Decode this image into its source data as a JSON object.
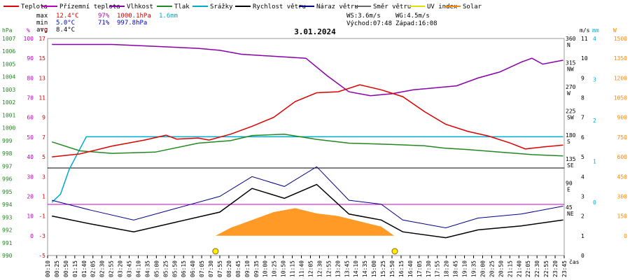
{
  "chart_data": {
    "type": "line",
    "title": "3.01.2024",
    "legend": [
      {
        "name": "Teplota",
        "color": "#dd0000"
      },
      {
        "name": "Přízemní teplota",
        "color": "#bb00bb"
      },
      {
        "name": "Vlhkost",
        "color": "#8800aa"
      },
      {
        "name": "Tlak",
        "color": "#228822"
      },
      {
        "name": "Srážky",
        "color": "#00aacc"
      },
      {
        "name": "Rychlost větru",
        "color": "#000000"
      },
      {
        "name": "Náraz větru",
        "color": "#000088"
      },
      {
        "name": "Směr větru",
        "color": "#666666"
      },
      {
        "name": "UV index",
        "color": "#e0e000"
      },
      {
        "name": "Solar",
        "color": "#ff8800"
      }
    ],
    "stats": {
      "max": {
        "label": "max",
        "temp": "12.4°C",
        "hum": "97%",
        "press": "1000.1hPa",
        "rain": "1.6mm"
      },
      "min": {
        "label": "min",
        "temp": "5.0°C",
        "hum": "71%",
        "press": "997.8hPa"
      },
      "avg": {
        "label": "avg",
        "temp": "8.4°C"
      }
    },
    "wind_info": {
      "ws": "WS:3.6m/s",
      "wg": "WG:4.5m/s",
      "sunrise": "Východ:07:48",
      "sunset": "Západ:16:08"
    },
    "axes": {
      "left_units": {
        "hpa": "hPa",
        "pct": "%",
        "degc": "°C"
      },
      "right_units": {
        "ms": "m/s",
        "mm": "mm",
        "w": "W"
      },
      "x_unit": "čas",
      "hpa_ticks": [
        "1007",
        "1006",
        "1005",
        "1004",
        "1003",
        "1002",
        "1001",
        "1000",
        "999",
        "998",
        "997",
        "996",
        "995",
        "994",
        "993",
        "992",
        "991",
        "990"
      ],
      "pct_ticks": [
        "100",
        "90",
        "80",
        "70",
        "60",
        "50",
        "40",
        "30",
        "20",
        "10",
        "0"
      ],
      "temp_ticks_top": [
        "17",
        "15",
        "13",
        "11",
        "9",
        "7",
        "5"
      ],
      "temp_ticks_bottom": [
        "3",
        "1",
        "-1",
        "-3",
        "-5"
      ],
      "dir_ticks": [
        {
          "deg": "360",
          "dir": "N"
        },
        {
          "deg": "315",
          "dir": "NW"
        },
        {
          "deg": "270",
          "dir": "W"
        },
        {
          "deg": "225",
          "dir": "SW"
        },
        {
          "deg": "180",
          "dir": "S"
        },
        {
          "deg": "135",
          "dir": "SE"
        },
        {
          "deg": "90",
          "dir": "E"
        },
        {
          "deg": "45",
          "dir": "NE"
        }
      ],
      "ms_ticks": [
        "11",
        "10",
        "9",
        "8",
        "7",
        "6",
        "5",
        "4",
        "3",
        "2",
        "1",
        "0"
      ],
      "mm_ticks": [
        "4",
        "3",
        "2",
        "1",
        "0"
      ],
      "w_ticks": [
        "1500",
        "1350",
        "1200",
        "1050",
        "900",
        "750",
        "600",
        "450",
        "300",
        "150",
        "0"
      ],
      "time_ticks": [
        "00:10",
        "00:25",
        "00:50",
        "01:15",
        "01:40",
        "02:05",
        "02:30",
        "02:55",
        "03:20",
        "03:45",
        "04:10",
        "04:35",
        "05:00",
        "05:25",
        "05:50",
        "06:15",
        "06:40",
        "07:05",
        "07:30",
        "07:55",
        "08:20",
        "08:45",
        "09:10",
        "09:35",
        "10:00",
        "10:25",
        "10:50",
        "11:15",
        "11:40",
        "12:05",
        "12:30",
        "12:55",
        "13:20",
        "13:45",
        "14:10",
        "14:35",
        "15:00",
        "15:25",
        "15:50",
        "16:15",
        "16:40",
        "17:05",
        "17:30",
        "17:55",
        "18:20",
        "18:45",
        "19:10",
        "19:35",
        "20:00",
        "20:25",
        "20:50",
        "21:15",
        "21:40",
        "22:05",
        "22:30",
        "22:55",
        "23:20",
        "23:45"
      ]
    },
    "series": [
      {
        "name": "Teplota",
        "unit": "°C",
        "points": [
          [
            0.2,
            5.0
          ],
          [
            1.5,
            5.3
          ],
          [
            3.0,
            6.1
          ],
          [
            4.5,
            6.7
          ],
          [
            5.5,
            7.2
          ],
          [
            6.0,
            6.8
          ],
          [
            7.0,
            6.9
          ],
          [
            7.5,
            6.7
          ],
          [
            8.5,
            7.3
          ],
          [
            9.5,
            8.1
          ],
          [
            10.5,
            9.0
          ],
          [
            11.5,
            10.6
          ],
          [
            12.5,
            11.5
          ],
          [
            13.5,
            11.6
          ],
          [
            14.5,
            12.3
          ],
          [
            15.5,
            11.8
          ],
          [
            16.5,
            11.1
          ],
          [
            17.5,
            9.6
          ],
          [
            18.5,
            8.3
          ],
          [
            19.5,
            7.6
          ],
          [
            20.5,
            7.1
          ],
          [
            21.5,
            6.4
          ],
          [
            22.2,
            5.8
          ],
          [
            23.0,
            6.0
          ],
          [
            23.95,
            6.2
          ]
        ]
      },
      {
        "name": "Vlhkost",
        "unit": "%",
        "points": [
          [
            0.2,
            97
          ],
          [
            1.5,
            97
          ],
          [
            3.0,
            97
          ],
          [
            5.0,
            96
          ],
          [
            7.0,
            95
          ],
          [
            8.0,
            94
          ],
          [
            9.0,
            92
          ],
          [
            10.5,
            91
          ],
          [
            12.0,
            90
          ],
          [
            13.0,
            81
          ],
          [
            14.0,
            73
          ],
          [
            15.0,
            71
          ],
          [
            16.0,
            72
          ],
          [
            17.0,
            74
          ],
          [
            18.0,
            75
          ],
          [
            19.0,
            76
          ],
          [
            20.0,
            80
          ],
          [
            21.0,
            83
          ],
          [
            22.0,
            88
          ],
          [
            22.5,
            90
          ],
          [
            23.0,
            87
          ],
          [
            23.95,
            89
          ]
        ]
      },
      {
        "name": "Tlak",
        "unit": "hPa",
        "points": [
          [
            0.2,
            998.9
          ],
          [
            1.5,
            998.2
          ],
          [
            3.0,
            998.0
          ],
          [
            5.0,
            998.1
          ],
          [
            7.0,
            998.8
          ],
          [
            8.5,
            999.0
          ],
          [
            9.5,
            999.4
          ],
          [
            11.0,
            999.5
          ],
          [
            12.5,
            999.1
          ],
          [
            14.0,
            998.8
          ],
          [
            16.0,
            998.7
          ],
          [
            17.5,
            998.6
          ],
          [
            18.5,
            998.4
          ],
          [
            19.5,
            998.3
          ],
          [
            21.0,
            998.1
          ],
          [
            22.5,
            997.9
          ],
          [
            23.95,
            997.8
          ]
        ]
      },
      {
        "name": "Srážky",
        "unit": "mm",
        "points": [
          [
            0.2,
            0
          ],
          [
            0.6,
            0.2
          ],
          [
            1.0,
            0.8
          ],
          [
            1.4,
            1.2
          ],
          [
            1.8,
            1.6
          ],
          [
            23.95,
            1.6
          ]
        ]
      },
      {
        "name": "Rychlost větru",
        "unit": "m/s",
        "points": [
          [
            0.2,
            2.0
          ],
          [
            2.0,
            1.6
          ],
          [
            4.0,
            1.2
          ],
          [
            6.0,
            1.7
          ],
          [
            8.0,
            2.2
          ],
          [
            9.5,
            3.4
          ],
          [
            11.0,
            2.9
          ],
          [
            12.5,
            3.6
          ],
          [
            14.0,
            2.1
          ],
          [
            15.5,
            1.8
          ],
          [
            16.5,
            1.2
          ],
          [
            18.5,
            0.9
          ],
          [
            20.0,
            1.3
          ],
          [
            22.0,
            1.5
          ],
          [
            23.95,
            1.8
          ]
        ]
      },
      {
        "name": "Náraz větru",
        "unit": "m/s",
        "points": [
          [
            0.2,
            2.8
          ],
          [
            2.0,
            2.3
          ],
          [
            4.0,
            1.8
          ],
          [
            6.0,
            2.4
          ],
          [
            8.0,
            3.0
          ],
          [
            9.5,
            4.0
          ],
          [
            11.0,
            3.5
          ],
          [
            12.5,
            4.5
          ],
          [
            14.0,
            2.8
          ],
          [
            15.5,
            2.6
          ],
          [
            16.5,
            1.8
          ],
          [
            18.5,
            1.4
          ],
          [
            20.0,
            1.9
          ],
          [
            22.0,
            2.1
          ],
          [
            23.95,
            2.5
          ]
        ]
      },
      {
        "name": "Solar",
        "unit": "W",
        "points": [
          [
            7.8,
            0
          ],
          [
            8.5,
            60
          ],
          [
            9.5,
            120
          ],
          [
            10.5,
            180
          ],
          [
            11.5,
            210
          ],
          [
            12.5,
            170
          ],
          [
            13.5,
            150
          ],
          [
            14.5,
            110
          ],
          [
            15.5,
            70
          ],
          [
            16.1,
            0
          ]
        ]
      }
    ]
  }
}
